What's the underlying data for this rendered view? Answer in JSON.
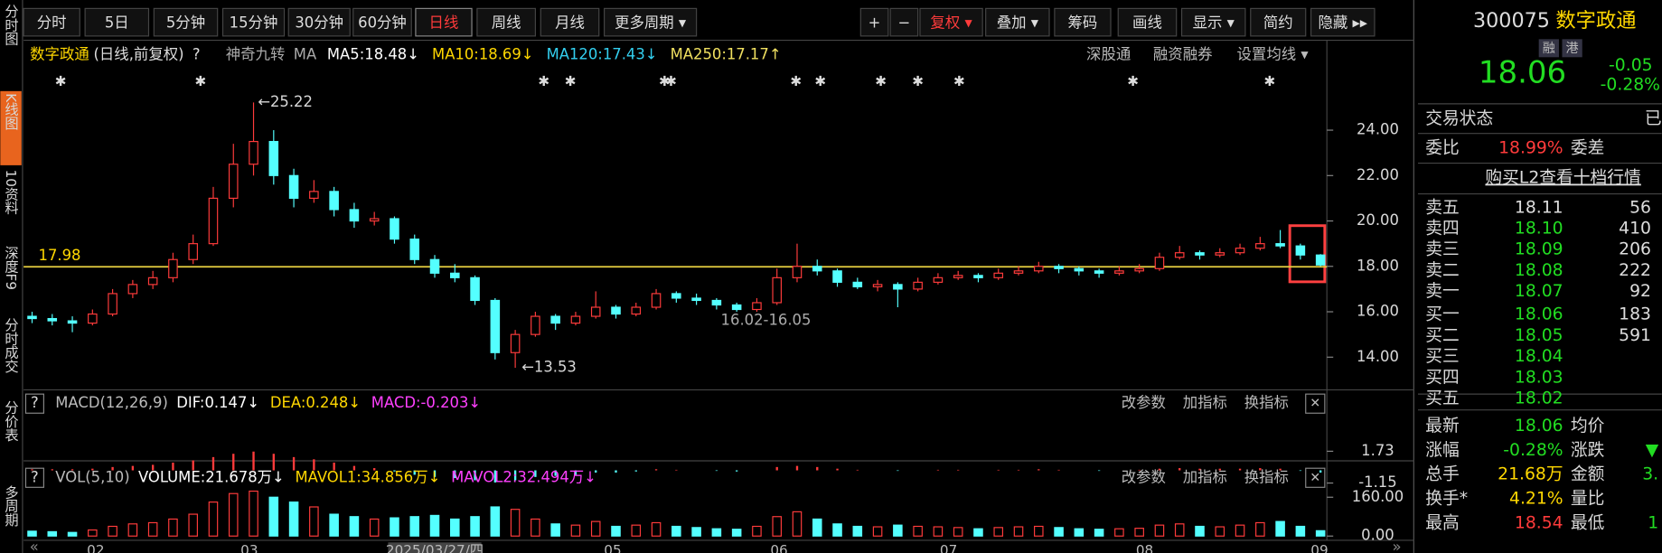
{
  "sidebar": [
    "分时图",
    "K线图",
    "10资料",
    "深度F9",
    "分时成交",
    "分价表",
    "多周期"
  ],
  "toolbar": {
    "periods": [
      "分时",
      "5日",
      "5分钟",
      "15分钟",
      "30分钟",
      "60分钟",
      "日线",
      "周线",
      "月线",
      "更多周期 ▾"
    ],
    "active": "日线",
    "tools": [
      "+",
      "−",
      "复权 ▾",
      "叠加 ▾",
      "筹码",
      "画线",
      "显示 ▾",
      "简约",
      "隐藏 ▸▸"
    ]
  },
  "legend": {
    "stock": "数字政通",
    "mode": "(日线,前复权)",
    "help": "?",
    "nine": "神奇九转",
    "ma": "MA",
    "items": [
      {
        "text": "MA5:18.48↓",
        "color": "#ffffff"
      },
      {
        "text": "MA10:18.69↓",
        "color": "#ffd700"
      },
      {
        "text": "MA120:17.43↓",
        "color": "#33d0f0"
      },
      {
        "text": "MA250:17.17↑",
        "color": "#f0e060"
      }
    ],
    "links": [
      "深股通",
      "融资融券",
      "设置均线 ▾"
    ]
  },
  "kline": {
    "ylim": [
      12.7,
      26.7
    ],
    "yticks": [
      {
        "value": 14,
        "label": "14.00"
      },
      {
        "value": 16,
        "label": "16.00"
      },
      {
        "value": 18,
        "label": "18.00"
      },
      {
        "value": 20,
        "label": "20.00"
      },
      {
        "value": 22,
        "label": "22.00"
      },
      {
        "value": 24,
        "label": "24.00"
      }
    ],
    "hline": 17.98,
    "annotations": [
      "←25.22",
      "←13.53",
      "16.02-16.05"
    ],
    "candles": [
      [
        15.8,
        16.0,
        15.5,
        15.7
      ],
      [
        15.7,
        15.9,
        15.4,
        15.6
      ],
      [
        15.6,
        15.8,
        15.1,
        15.5
      ],
      [
        15.5,
        16.1,
        15.4,
        15.9
      ],
      [
        15.9,
        17.0,
        15.8,
        16.8
      ],
      [
        16.8,
        17.4,
        16.6,
        17.2
      ],
      [
        17.2,
        17.8,
        17.0,
        17.5
      ],
      [
        17.5,
        18.6,
        17.3,
        18.3
      ],
      [
        18.3,
        19.4,
        18.1,
        19.0
      ],
      [
        19.0,
        21.5,
        18.9,
        21.0
      ],
      [
        21.0,
        23.4,
        20.6,
        22.5
      ],
      [
        22.5,
        25.22,
        22.0,
        23.5
      ],
      [
        23.5,
        24.0,
        21.6,
        22.0
      ],
      [
        22.0,
        22.3,
        20.6,
        21.0
      ],
      [
        21.0,
        21.8,
        20.8,
        21.3
      ],
      [
        21.3,
        21.5,
        20.2,
        20.5
      ],
      [
        20.5,
        20.8,
        19.7,
        20.0
      ],
      [
        20.0,
        20.4,
        19.8,
        20.1
      ],
      [
        20.1,
        20.2,
        19.0,
        19.2
      ],
      [
        19.2,
        19.4,
        18.1,
        18.3
      ],
      [
        18.3,
        18.5,
        17.5,
        17.7
      ],
      [
        17.7,
        18.1,
        17.3,
        17.5
      ],
      [
        17.5,
        17.6,
        16.3,
        16.5
      ],
      [
        16.5,
        16.6,
        13.9,
        14.2
      ],
      [
        14.2,
        15.2,
        13.53,
        15.0
      ],
      [
        15.0,
        16.0,
        14.9,
        15.8
      ],
      [
        15.8,
        15.9,
        15.2,
        15.5
      ],
      [
        15.5,
        16.0,
        15.4,
        15.8
      ],
      [
        15.8,
        16.9,
        15.7,
        16.2
      ],
      [
        16.2,
        16.3,
        15.7,
        15.9
      ],
      [
        15.9,
        16.4,
        15.8,
        16.2
      ],
      [
        16.2,
        17.0,
        16.1,
        16.8
      ],
      [
        16.8,
        16.9,
        16.4,
        16.6
      ],
      [
        16.6,
        16.8,
        16.3,
        16.5
      ],
      [
        16.5,
        16.6,
        16.1,
        16.3
      ],
      [
        16.3,
        16.4,
        16.0,
        16.1
      ],
      [
        16.1,
        16.6,
        16.0,
        16.4
      ],
      [
        16.4,
        17.9,
        16.3,
        17.5
      ],
      [
        17.5,
        19.0,
        17.3,
        18.0
      ],
      [
        18.0,
        18.3,
        17.6,
        17.8
      ],
      [
        17.8,
        17.9,
        17.1,
        17.3
      ],
      [
        17.3,
        17.5,
        17.0,
        17.1
      ],
      [
        17.1,
        17.4,
        16.9,
        17.2
      ],
      [
        17.2,
        17.3,
        16.2,
        17.0
      ],
      [
        17.0,
        17.5,
        16.9,
        17.3
      ],
      [
        17.3,
        17.7,
        17.2,
        17.5
      ],
      [
        17.5,
        17.8,
        17.4,
        17.6
      ],
      [
        17.6,
        17.7,
        17.3,
        17.5
      ],
      [
        17.5,
        17.9,
        17.4,
        17.7
      ],
      [
        17.7,
        18.0,
        17.6,
        17.8
      ],
      [
        17.8,
        18.2,
        17.7,
        18.0
      ],
      [
        18.0,
        18.1,
        17.7,
        17.9
      ],
      [
        17.9,
        18.0,
        17.6,
        17.8
      ],
      [
        17.8,
        17.9,
        17.5,
        17.7
      ],
      [
        17.7,
        18.0,
        17.6,
        17.8
      ],
      [
        17.8,
        18.1,
        17.7,
        17.9
      ],
      [
        17.9,
        18.6,
        17.8,
        18.4
      ],
      [
        18.4,
        18.9,
        18.3,
        18.6
      ],
      [
        18.6,
        18.7,
        18.3,
        18.5
      ],
      [
        18.5,
        18.8,
        18.4,
        18.6
      ],
      [
        18.6,
        19.0,
        18.5,
        18.8
      ],
      [
        18.8,
        19.3,
        18.7,
        19.0
      ],
      [
        19.0,
        19.6,
        18.8,
        18.9
      ],
      [
        18.9,
        19.0,
        18.3,
        18.5
      ],
      [
        18.5,
        18.54,
        18.0,
        18.06
      ]
    ]
  },
  "macd": {
    "title": "MACD(12,26,9)",
    "items": [
      {
        "text": "DIF:0.147↓",
        "color": "#ffffff"
      },
      {
        "text": "DEA:0.248↓",
        "color": "#ffd700"
      },
      {
        "text": "MACD:-0.203↓",
        "color": "#ff40ff"
      }
    ],
    "ylim": [
      -1.73,
      4.7
    ],
    "yticks": [
      {
        "value": -1.15,
        "label": "-1.15"
      },
      1.73
    ],
    "values": [
      0.1,
      0.1,
      0.1,
      0.15,
      0.3,
      0.4,
      0.5,
      0.7,
      0.9,
      1.2,
      1.5,
      1.7,
      1.5,
      1.2,
      1.0,
      0.7,
      0.4,
      0.2,
      -0.1,
      -0.4,
      -0.6,
      -0.7,
      -0.9,
      -1.1,
      -0.9,
      -0.6,
      -0.5,
      -0.4,
      -0.2,
      -0.2,
      -0.1,
      0.1,
      0.05,
      0,
      -0.05,
      -0.1,
      0,
      0.3,
      0.4,
      0.3,
      0.15,
      0.05,
      0,
      -0.05,
      0,
      0.05,
      0.05,
      0,
      0.05,
      0.05,
      0.1,
      0.05,
      0,
      -0.05,
      0,
      0.05,
      0.15,
      0.2,
      0.15,
      0.15,
      0.15,
      0.2,
      0.15,
      -0.05,
      -0.2
    ]
  },
  "vol": {
    "title": "VOL(5,10)",
    "items": [
      {
        "text": "VOLUME:21.678万↓",
        "color": "#ffffff"
      },
      {
        "text": "MAVOL1:34.856万↓",
        "color": "#ffd700"
      },
      {
        "text": "MAVOL2:32.494万↓",
        "color": "#ff40ff"
      }
    ],
    "ylim": [
      0,
      192
    ],
    "yticks": [
      {
        "value": 0,
        "label": "0.00"
      },
      {
        "value": 160,
        "label": "160.00"
      }
    ],
    "values": [
      20,
      18,
      15,
      25,
      40,
      50,
      55,
      70,
      90,
      140,
      175,
      185,
      160,
      140,
      120,
      90,
      80,
      70,
      75,
      80,
      85,
      70,
      80,
      120,
      110,
      70,
      50,
      45,
      60,
      40,
      45,
      55,
      40,
      35,
      30,
      28,
      40,
      80,
      100,
      70,
      50,
      40,
      38,
      45,
      40,
      38,
      35,
      30,
      35,
      38,
      40,
      35,
      30,
      28,
      30,
      32,
      45,
      50,
      40,
      38,
      45,
      55,
      60,
      40,
      22
    ]
  },
  "panel_tools": [
    "改参数",
    "加指标",
    "换指标",
    "✕"
  ],
  "xaxis": [
    "02",
    "03",
    "2025/03/27/四",
    "05",
    "06",
    "07",
    "08",
    "09"
  ],
  "quote": {
    "code": "300075",
    "name": "数字政通",
    "badges": [
      "融",
      "港"
    ],
    "price": "18.06",
    "change": "-0.05",
    "pct": "-0.28%",
    "status_label": "交易状态",
    "status": "已",
    "wb_label": "委比",
    "wb": "18.99%",
    "wc_label": "委差",
    "l2": "购买L2查看十档行情",
    "book": [
      [
        "卖五",
        "18.11",
        "56"
      ],
      [
        "卖四",
        "18.10",
        "410"
      ],
      [
        "卖三",
        "18.09",
        "206"
      ],
      [
        "卖二",
        "18.08",
        "222"
      ],
      [
        "卖一",
        "18.07",
        "92"
      ],
      [
        "买一",
        "18.06",
        "183"
      ],
      [
        "买二",
        "18.05",
        "591"
      ],
      [
        "买三",
        "18.04",
        ""
      ],
      [
        "买四",
        "18.03",
        ""
      ],
      [
        "买五",
        "18.02",
        ""
      ]
    ],
    "stats": [
      [
        "最新",
        "18.06",
        "均价",
        ""
      ],
      [
        "涨幅",
        "-0.28%",
        "涨跌",
        "▼"
      ],
      [
        "总手",
        "21.68万",
        "金额",
        "3."
      ],
      [
        "换手*",
        "4.21%",
        "量比",
        ""
      ],
      [
        "最高",
        "18.54",
        "最低",
        "1"
      ]
    ]
  }
}
